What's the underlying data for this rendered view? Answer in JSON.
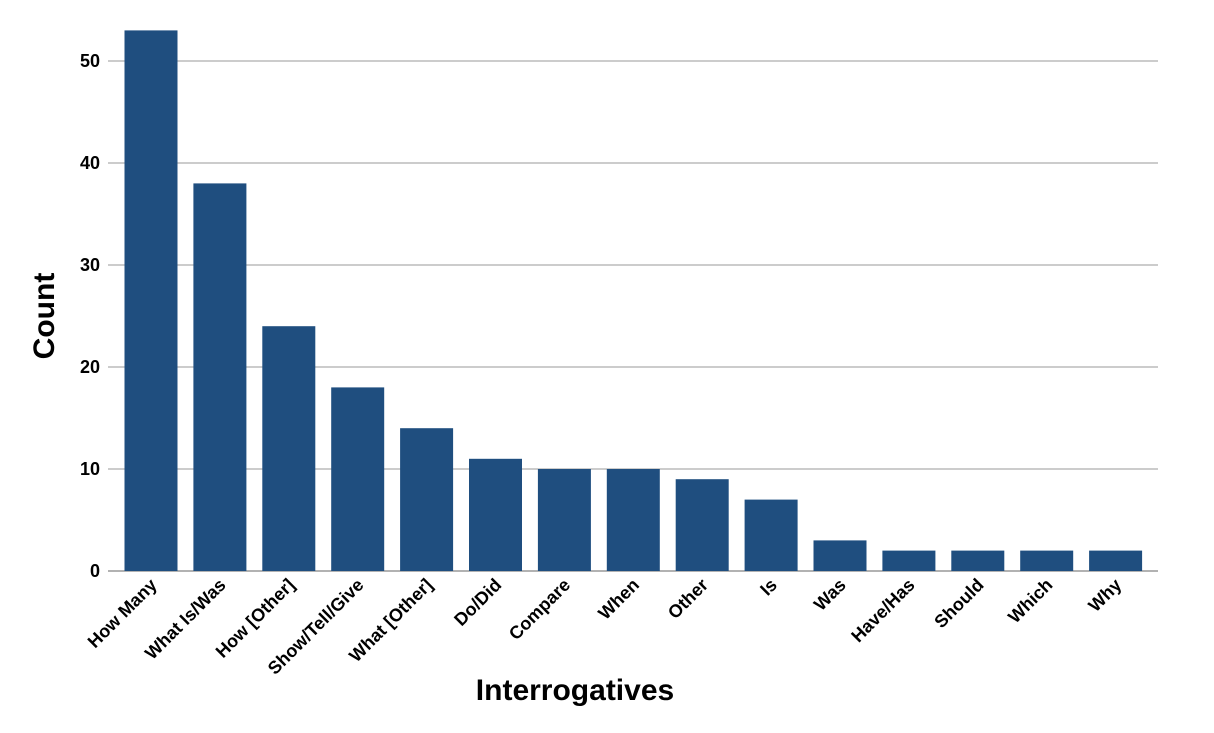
{
  "chart_data": {
    "type": "bar",
    "title": "",
    "xlabel": "Interrogatives",
    "ylabel": "Count",
    "categories": [
      "How Many",
      "What Is/Was",
      "How [Other]",
      "Show/Tell/Give",
      "What [Other]",
      "Do/Did",
      "Compare",
      "When",
      "Other",
      "Is",
      "Was",
      "Have/Has",
      "Should",
      "Which",
      "Why"
    ],
    "values": [
      53,
      38,
      24,
      18,
      14,
      11,
      10,
      10,
      9,
      7,
      3,
      2,
      2,
      2,
      2
    ],
    "ylim": [
      0,
      55
    ],
    "yticks": [
      0,
      10,
      20,
      30,
      40,
      50
    ],
    "grid": true,
    "bar_color": "#1f4e7f",
    "grid_color": "#999999"
  }
}
